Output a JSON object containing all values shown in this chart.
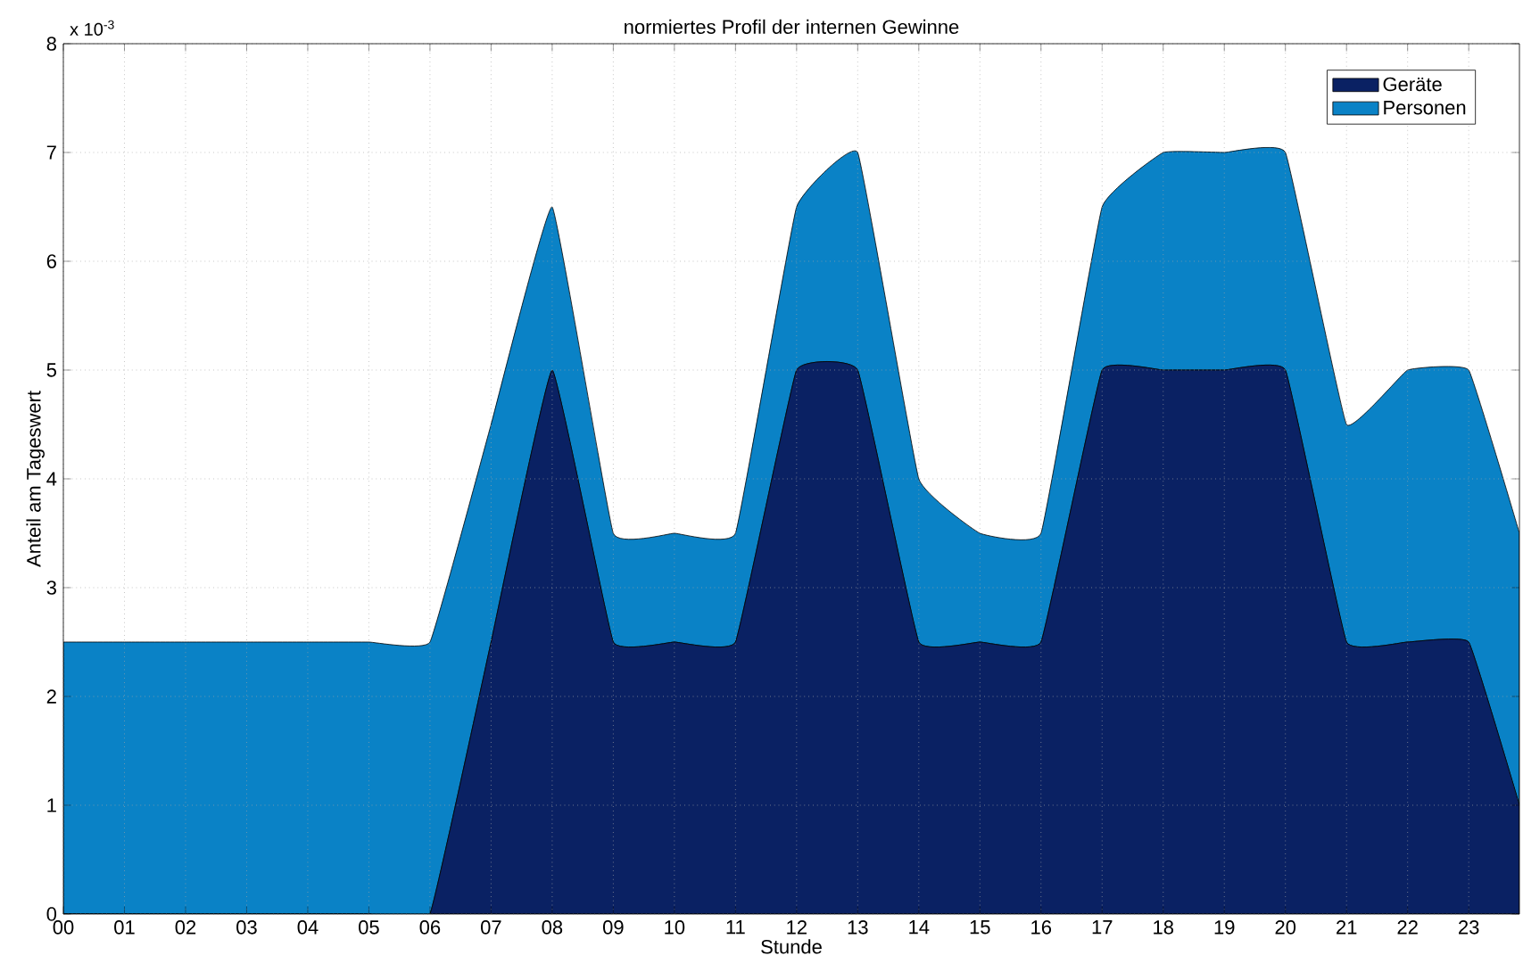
{
  "chart_data": {
    "type": "area",
    "title": "normiertes Profil der internen Gewinne",
    "xlabel": "Stunde",
    "ylabel": "Anteil am Tageswert",
    "annotations": [
      "x 10$^{-3}$"
    ],
    "x": [
      0,
      1,
      2,
      3,
      4,
      5,
      6,
      7,
      8,
      9,
      10,
      11,
      12,
      13,
      14,
      15,
      16,
      17,
      18,
      19,
      20,
      21,
      22,
      23,
      23.83
    ],
    "series": [
      {
        "name": "Geräte",
        "color": "#0a2163",
        "values": [
          0,
          0,
          0,
          0,
          0,
          0,
          0,
          2.5,
          5,
          2.5,
          2.5,
          2.5,
          5,
          5,
          2.5,
          2.5,
          2.5,
          5,
          5,
          5,
          5,
          2.5,
          2.5,
          2.5,
          1.0
        ]
      },
      {
        "name": "Personen",
        "color": "#0a82c6",
        "values": [
          2.5,
          2.5,
          2.5,
          2.5,
          2.5,
          2.5,
          2.5,
          2.0,
          1.5,
          1.0,
          1.0,
          1.0,
          1.5,
          2.0,
          1.5,
          1.0,
          1.0,
          1.5,
          2.0,
          2.0,
          2.0,
          2.0,
          2.5,
          2.5,
          2.5
        ]
      }
    ],
    "stacked": true,
    "xlim": [
      0,
      23.83
    ],
    "ylim": [
      0,
      8
    ],
    "xticks": [
      {
        "value": 0,
        "label": "00"
      },
      {
        "value": 1,
        "label": "01"
      },
      {
        "value": 2,
        "label": "02"
      },
      {
        "value": 3,
        "label": "03"
      },
      {
        "value": 4,
        "label": "04"
      },
      {
        "value": 5,
        "label": "05"
      },
      {
        "value": 6,
        "label": "06"
      },
      {
        "value": 7,
        "label": "07"
      },
      {
        "value": 8,
        "label": "08"
      },
      {
        "value": 9,
        "label": "09"
      },
      {
        "value": 10,
        "label": "10"
      },
      {
        "value": 11,
        "label": "11"
      },
      {
        "value": 12,
        "label": "12"
      },
      {
        "value": 13,
        "label": "13"
      },
      {
        "value": 14,
        "label": "14"
      },
      {
        "value": 15,
        "label": "15"
      },
      {
        "value": 16,
        "label": "16"
      },
      {
        "value": 17,
        "label": "17"
      },
      {
        "value": 18,
        "label": "18"
      },
      {
        "value": 19,
        "label": "19"
      },
      {
        "value": 20,
        "label": "20"
      },
      {
        "value": 21,
        "label": "21"
      },
      {
        "value": 22,
        "label": "22"
      },
      {
        "value": 23,
        "label": "23"
      }
    ],
    "yticks": [
      0,
      1,
      2,
      3,
      4,
      5,
      6,
      7,
      8
    ],
    "grid": true,
    "legend": "top right"
  }
}
